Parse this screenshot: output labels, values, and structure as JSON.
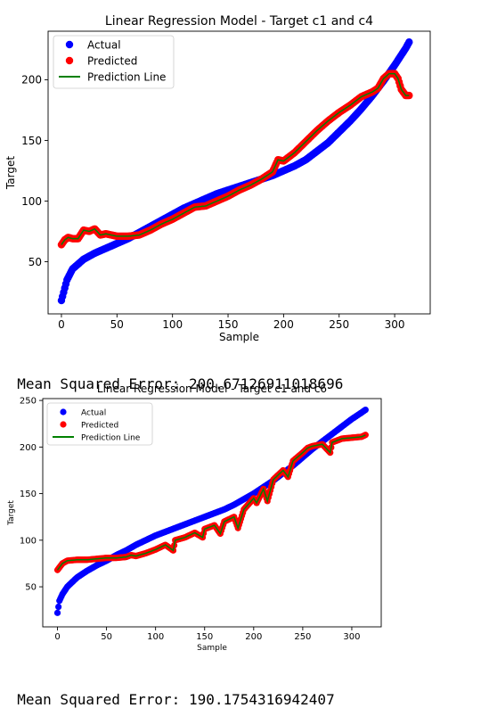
{
  "chart_data": [
    {
      "type": "scatter",
      "title": "Linear Regression Model - Target c1 and c4",
      "xlabel": "Sample",
      "ylabel": "Target",
      "xlim": [
        -12,
        332
      ],
      "ylim": [
        7,
        240
      ],
      "xticks": [
        0,
        50,
        100,
        150,
        200,
        250,
        300
      ],
      "yticks": [
        50,
        100,
        150,
        200
      ],
      "legend_position": "upper-left",
      "legend": [
        "Actual",
        "Predicted",
        "Prediction Line"
      ],
      "series": [
        {
          "name": "Actual",
          "color": "#0000ff",
          "x": [
            0,
            5,
            10,
            20,
            30,
            40,
            50,
            60,
            70,
            80,
            90,
            100,
            110,
            120,
            130,
            140,
            150,
            160,
            170,
            180,
            190,
            200,
            210,
            220,
            230,
            240,
            250,
            260,
            270,
            280,
            290,
            300,
            310,
            313
          ],
          "y": [
            18,
            35,
            44,
            52,
            57,
            61,
            65,
            69,
            74,
            79,
            84,
            89,
            94,
            98,
            102,
            106,
            109,
            112,
            115,
            118,
            121,
            125,
            129,
            134,
            141,
            148,
            157,
            166,
            176,
            187,
            199,
            212,
            226,
            231
          ]
        },
        {
          "name": "Predicted",
          "color": "#ff0000",
          "x": [
            0,
            3,
            6,
            10,
            15,
            20,
            25,
            30,
            35,
            40,
            50,
            60,
            70,
            80,
            90,
            100,
            110,
            120,
            130,
            140,
            150,
            160,
            170,
            180,
            190,
            195,
            200,
            210,
            220,
            230,
            240,
            250,
            260,
            270,
            280,
            285,
            290,
            295,
            300,
            303,
            306,
            310,
            313
          ],
          "y": [
            64,
            68,
            70,
            69,
            69,
            76,
            75,
            77,
            72,
            73,
            71,
            71,
            72,
            76,
            81,
            85,
            90,
            95,
            96,
            100,
            104,
            109,
            113,
            118,
            124,
            134,
            133,
            140,
            149,
            158,
            166,
            173,
            179,
            186,
            190,
            193,
            201,
            205,
            205,
            201,
            192,
            187,
            187
          ]
        }
      ],
      "prediction_line_color": "#008000"
    },
    {
      "type": "scatter",
      "title": "Linear Regression Model - Target c1 and c6",
      "xlabel": "Sample",
      "ylabel": "Target",
      "xlim": [
        -15,
        330
      ],
      "ylim": [
        7,
        252
      ],
      "xticks": [
        0,
        50,
        100,
        150,
        200,
        250,
        300
      ],
      "yticks": [
        50,
        100,
        150,
        200,
        250
      ],
      "legend_position": "upper-left",
      "legend": [
        "Actual",
        "Predicted",
        "Prediction Line"
      ],
      "series": [
        {
          "name": "Actual",
          "color": "#0000ff",
          "x": [
            0,
            2,
            5,
            10,
            20,
            30,
            40,
            50,
            60,
            70,
            80,
            90,
            100,
            110,
            120,
            130,
            140,
            150,
            160,
            170,
            180,
            190,
            200,
            210,
            220,
            230,
            240,
            250,
            260,
            270,
            280,
            290,
            300,
            310,
            314
          ],
          "y": [
            22,
            35,
            42,
            50,
            60,
            67,
            73,
            78,
            84,
            89,
            95,
            100,
            105,
            109,
            113,
            117,
            121,
            125,
            129,
            133,
            138,
            144,
            150,
            157,
            164,
            172,
            180,
            189,
            198,
            206,
            214,
            222,
            230,
            237,
            240
          ]
        },
        {
          "name": "Predicted",
          "color": "#ff0000",
          "x": [
            0,
            5,
            10,
            20,
            30,
            40,
            50,
            60,
            70,
            75,
            80,
            90,
            100,
            110,
            118,
            120,
            130,
            140,
            148,
            150,
            160,
            166,
            170,
            180,
            184,
            190,
            200,
            203,
            210,
            214,
            220,
            230,
            235,
            240,
            250,
            255,
            260,
            270,
            278,
            280,
            290,
            300,
            310,
            314
          ],
          "y": [
            68,
            75,
            78,
            79,
            79,
            80,
            81,
            81,
            82,
            84,
            83,
            86,
            90,
            95,
            89,
            100,
            103,
            108,
            103,
            112,
            116,
            107,
            120,
            125,
            113,
            133,
            145,
            140,
            155,
            142,
            165,
            175,
            168,
            185,
            194,
            199,
            201,
            203,
            194,
            205,
            209,
            210,
            211,
            213
          ]
        }
      ],
      "prediction_line_color": "#008000"
    }
  ],
  "mse": [
    {
      "label": "Mean Squared Error:",
      "value": "200.67126911018696"
    },
    {
      "label": "Mean Squared Error:",
      "value": "190.1754316942407"
    }
  ]
}
